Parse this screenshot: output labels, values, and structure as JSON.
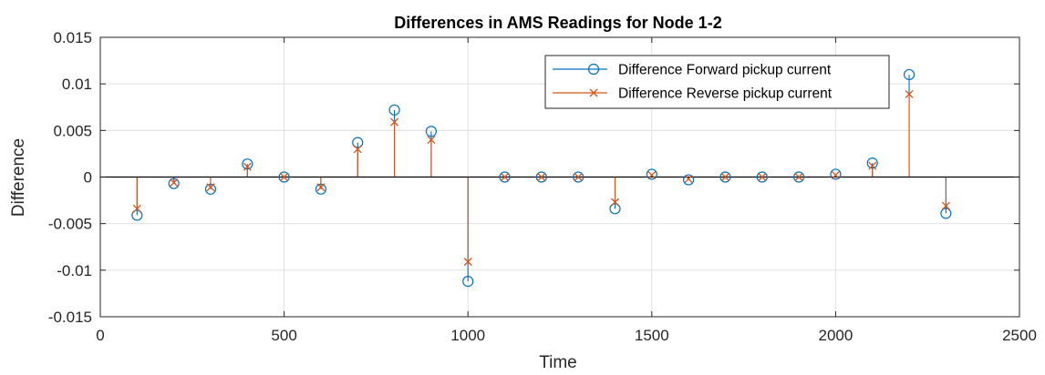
{
  "chart_data": {
    "type": "stem",
    "title": "Differences in AMS Readings for Node 1-2",
    "xlabel": "Time",
    "ylabel": "Difference",
    "xlim": [
      0,
      2500
    ],
    "ylim": [
      -0.015,
      0.015
    ],
    "x_ticks": [
      0,
      500,
      1000,
      1500,
      2000,
      2500
    ],
    "x_tick_labels": [
      "0",
      "500",
      "1000",
      "1500",
      "2000",
      "2500"
    ],
    "y_ticks": [
      -0.015,
      -0.01,
      -0.005,
      0,
      0.005,
      0.01,
      0.015
    ],
    "y_tick_labels": [
      "-0.015",
      "-0.01",
      "-0.005",
      "0",
      "0.005",
      "0.01",
      "0.015"
    ],
    "grid": true,
    "legend_position": "top-right",
    "x": [
      100,
      200,
      300,
      400,
      500,
      600,
      700,
      800,
      900,
      1000,
      1100,
      1200,
      1300,
      1400,
      1500,
      1600,
      1700,
      1800,
      1900,
      2000,
      2100,
      2200,
      2300
    ],
    "series": [
      {
        "name": "Difference Forward pickup current",
        "marker": "circle",
        "color": "#0072BD",
        "values": [
          -0.0041,
          -0.0007,
          -0.0013,
          0.0014,
          0.0,
          -0.0013,
          0.0037,
          0.0072,
          0.0049,
          -0.0112,
          0.0,
          0.0,
          0.0,
          -0.0034,
          0.0003,
          -0.0003,
          0.0,
          0.0,
          0.0,
          0.0003,
          0.0015,
          0.011,
          -0.0039
        ]
      },
      {
        "name": "Difference Reverse pickup current",
        "marker": "x",
        "color": "#D95319",
        "values": [
          -0.0034,
          -0.0006,
          -0.0011,
          0.0011,
          0.0,
          -0.0011,
          0.003,
          0.0059,
          0.004,
          -0.0091,
          0.0,
          0.0,
          0.0,
          -0.0027,
          0.0002,
          -0.0002,
          0.0,
          0.0,
          0.0,
          0.0002,
          0.0012,
          0.0089,
          -0.0031
        ]
      }
    ]
  }
}
